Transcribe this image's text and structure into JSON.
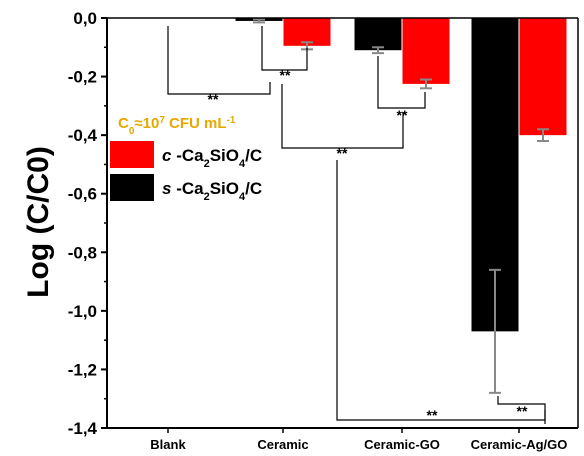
{
  "chart_data": {
    "type": "bar",
    "ylabel": "Log (C/C0)",
    "xlabel": "",
    "title": "",
    "ylim": [
      -1.4,
      0.0
    ],
    "yticks": [
      "0,0",
      "-0,2",
      "-0,4",
      "-0,6",
      "-0,8",
      "-1,0",
      "-1,2",
      "-1,4"
    ],
    "categories": [
      "Blank",
      "Ceramic",
      "Ceramic-GO",
      "Ceramic-Ag/GO"
    ],
    "series": [
      {
        "name": "s -Ca2SiO4/C",
        "name_parts": [
          "s",
          " -Ca",
          "2",
          "SiO",
          "4",
          "/C"
        ],
        "color": "#000000",
        "values": [
          0.0,
          -0.01,
          -0.11,
          -1.07
        ],
        "errors": [
          0.0,
          0.005,
          0.01,
          0.21
        ]
      },
      {
        "name": "c -Ca2SiO4/C",
        "name_parts": [
          "c",
          " -Ca",
          "2",
          "SiO",
          "4",
          "/C"
        ],
        "color": "#ff0000",
        "values": [
          0.0,
          -0.095,
          -0.225,
          -0.4
        ],
        "errors": [
          0.0,
          0.012,
          0.015,
          0.02
        ]
      }
    ],
    "legend_title_parts": [
      "C",
      "0",
      "≈10",
      "7",
      " CFU mL",
      "-1"
    ],
    "legend_title_color": "#e8a800",
    "legend_position": "upper-left",
    "significance": [
      {
        "label": "**",
        "from": [
          0,
          0
        ],
        "to": [
          1,
          0
        ]
      },
      {
        "label": "**",
        "from": [
          1,
          0
        ],
        "to": [
          1,
          1
        ]
      },
      {
        "label": "**",
        "from": [
          2,
          0
        ],
        "to": [
          2,
          1
        ]
      },
      {
        "label": "**",
        "from": [
          1,
          0
        ],
        "to": [
          2,
          1
        ]
      },
      {
        "label": "**",
        "from": [
          1,
          0
        ],
        "to": [
          3,
          1
        ]
      },
      {
        "label": "**",
        "from": [
          3,
          0
        ],
        "to": [
          3,
          1
        ]
      }
    ]
  }
}
